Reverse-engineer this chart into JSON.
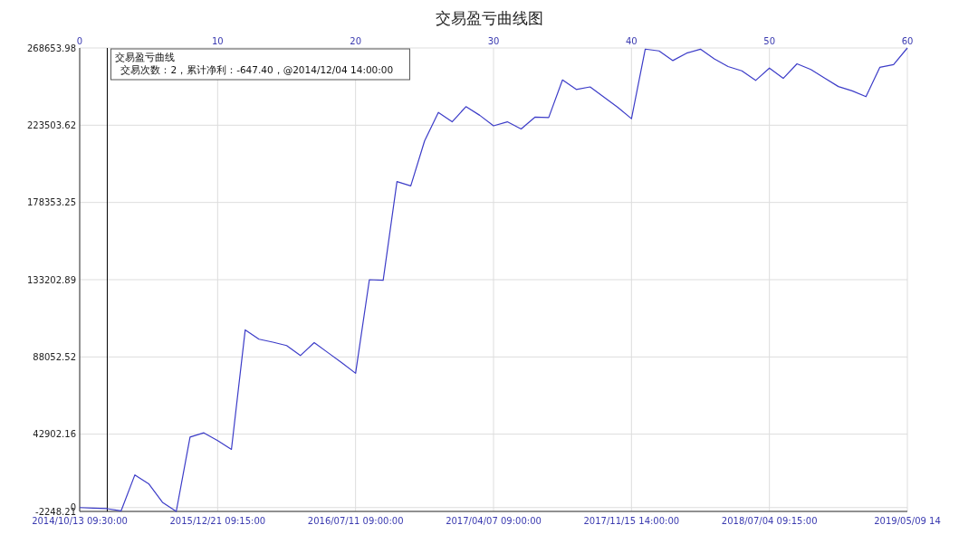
{
  "chart_data": {
    "type": "line",
    "title": "交易盈亏曲线图",
    "categories": [
      "2014/10/13 09:30:00",
      null,
      null,
      null,
      null,
      null,
      null,
      null,
      null,
      null,
      "2015/12/21 09:15:00",
      null,
      null,
      null,
      null,
      null,
      null,
      null,
      null,
      null,
      "2016/07/11 09:00:00",
      null,
      null,
      null,
      null,
      null,
      null,
      null,
      null,
      null,
      "2017/04/07 09:00:00",
      null,
      null,
      null,
      null,
      null,
      null,
      null,
      null,
      null,
      "2017/11/15 14:00:00",
      null,
      null,
      null,
      null,
      null,
      null,
      null,
      null,
      null,
      "2018/07/04 09:15:00",
      null,
      null,
      null,
      null,
      null,
      null,
      null,
      null,
      null,
      "2019/05/09 14"
    ],
    "series": [
      {
        "color": "#3c3cc8",
        "values": [
          0,
          -300,
          -647.4,
          -1960,
          19100,
          13950,
          3060,
          -2248.21,
          41200,
          43700,
          39200,
          34000,
          103900,
          98400,
          96700,
          94700,
          88850,
          96400,
          90550,
          84700,
          78500,
          133200,
          132850,
          190550,
          188000,
          214300,
          231000,
          225500,
          234350,
          229300,
          223150,
          225500,
          221300,
          228200,
          228000,
          250000,
          244400,
          245900,
          240000,
          234000,
          227300,
          268000,
          266950,
          261300,
          265650,
          267950,
          262300,
          257800,
          255300,
          249700,
          256900,
          250900,
          259400,
          256100,
          251100,
          246100,
          243600,
          240200,
          257300,
          258900,
          268653.98
        ]
      }
    ],
    "x2lim": [
      0,
      60
    ],
    "x2ticks": [
      0,
      10,
      20,
      30,
      40,
      50,
      60
    ],
    "ylim": [
      -2248.21,
      268653.98
    ],
    "yticks": [
      -2248.21,
      0,
      42902.16,
      88052.52,
      133202.89,
      178353.25,
      223503.62,
      268653.98
    ],
    "grid": true,
    "marker": "none",
    "line_style": "solid",
    "ref_lines": [
      {
        "axis": "x2",
        "value": 2,
        "label": null,
        "color": "#000000"
      }
    ],
    "annotations": [
      "交易盈亏曲线",
      "交易次数：2，累计净利：-647.40，@2014/12/04 14:00:00"
    ]
  }
}
